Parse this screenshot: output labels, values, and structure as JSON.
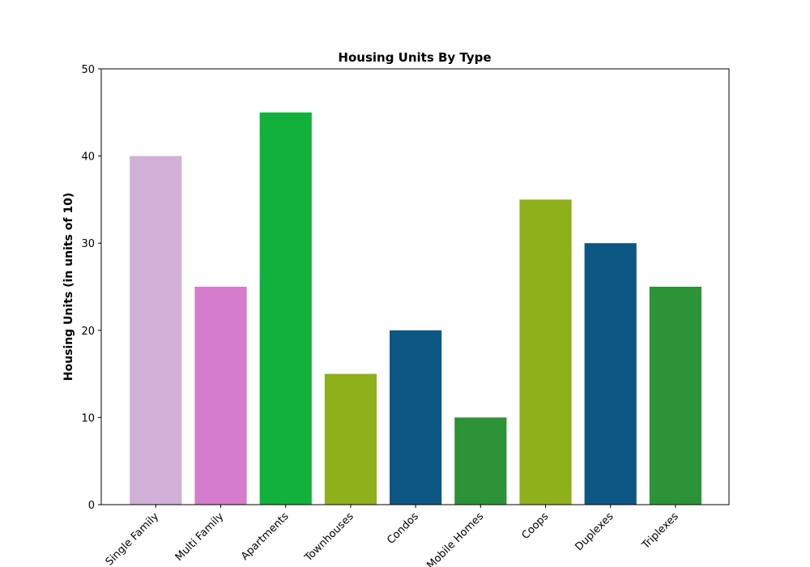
{
  "chart_data": {
    "type": "bar",
    "title": "Housing Units By Type",
    "xlabel": "",
    "ylabel": "Housing Units (in units of 10)",
    "categories": [
      "Single Family",
      "Multi Family",
      "Apartments",
      "Townhouses",
      "Condos",
      "Mobile Homes",
      "Coops",
      "Duplexes",
      "Triplexes"
    ],
    "values": [
      40,
      25,
      45,
      15,
      20,
      10,
      35,
      30,
      25
    ],
    "colors": [
      "#d1b1d8",
      "#d67ccc",
      "#11b13b",
      "#8fb01a",
      "#0d5784",
      "#2c9337",
      "#8fb01a",
      "#0d5784",
      "#2c9337"
    ],
    "ylim": [
      0,
      50
    ],
    "yticks": [
      0,
      10,
      20,
      30,
      40,
      50
    ],
    "grid": false,
    "legend": "none"
  }
}
